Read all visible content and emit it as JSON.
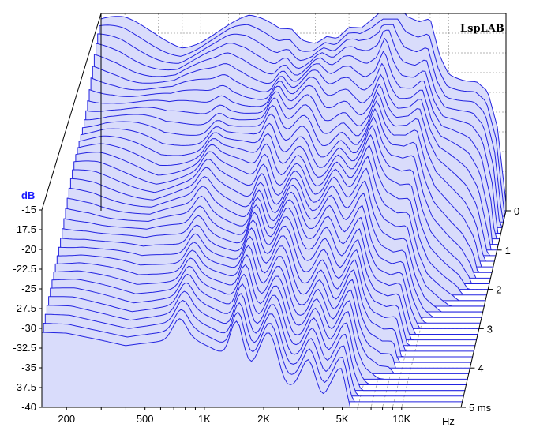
{
  "app": {
    "watermark": "LspLAB"
  },
  "chart_data": {
    "type": "waterfall",
    "ylabel": "dB",
    "xunit": "Hz",
    "zunit": "ms",
    "x_log_scale": true,
    "grid": true,
    "xlim": [
      150,
      20000
    ],
    "ylim": [
      -40,
      -15
    ],
    "zlim": [
      0,
      5
    ],
    "y_ticks": [
      "-15",
      "-17.5",
      "-20",
      "-22.5",
      "-25",
      "-27.5",
      "-30",
      "-32.5",
      "-35",
      "-37.5",
      "-40"
    ],
    "y_tick_values": [
      -15,
      -17.5,
      -20,
      -22.5,
      -25,
      -27.5,
      -30,
      -32.5,
      -35,
      -37.5,
      -40
    ],
    "x_ticks": [
      {
        "label": "200",
        "value": 200
      },
      {
        "label": "500",
        "value": 500
      },
      {
        "label": "1K",
        "value": 1000
      },
      {
        "label": "2K",
        "value": 2000
      },
      {
        "label": "5K",
        "value": 5000
      },
      {
        "label": "10K",
        "value": 10000
      }
    ],
    "z_ticks": [
      {
        "label": "0",
        "value": 0
      },
      {
        "label": "1",
        "value": 1
      },
      {
        "label": "2",
        "value": 2
      },
      {
        "label": "3",
        "value": 3
      },
      {
        "label": "4",
        "value": 4
      },
      {
        "label": "5 ms",
        "value": 5
      }
    ],
    "colors": {
      "curve_line": "#2323e0",
      "curve_fill": "#d9dcfb",
      "axis_label": "#1a1aff",
      "axis_line": "#000000",
      "grid": "#9a9a9a"
    },
    "base_response": {
      "freq_hz": [
        150,
        200,
        300,
        400,
        500,
        700,
        900,
        1100,
        1300,
        1500,
        1700,
        2000,
        2300,
        2600,
        3000,
        3500,
        4000,
        4500,
        5000,
        5500,
        6000,
        7000,
        8000,
        9000,
        10000,
        12000,
        14000,
        16000,
        18000,
        20000
      ],
      "db": [
        -16.5,
        -16.6,
        -17.5,
        -18.2,
        -17.8,
        -17.0,
        -16.4,
        -16.8,
        -17.2,
        -16.6,
        -17.5,
        -17.6,
        -16.8,
        -17.4,
        -16.6,
        -17.4,
        -16.7,
        -15.8,
        -12.3,
        -14.7,
        -16.0,
        -16.0,
        -15.0,
        -19.4,
        -21.5,
        -22.5,
        -23.2,
        -25.0,
        -30.0,
        -40.0
      ]
    },
    "decay_slices": 36,
    "decay_span_ms": 5
  }
}
